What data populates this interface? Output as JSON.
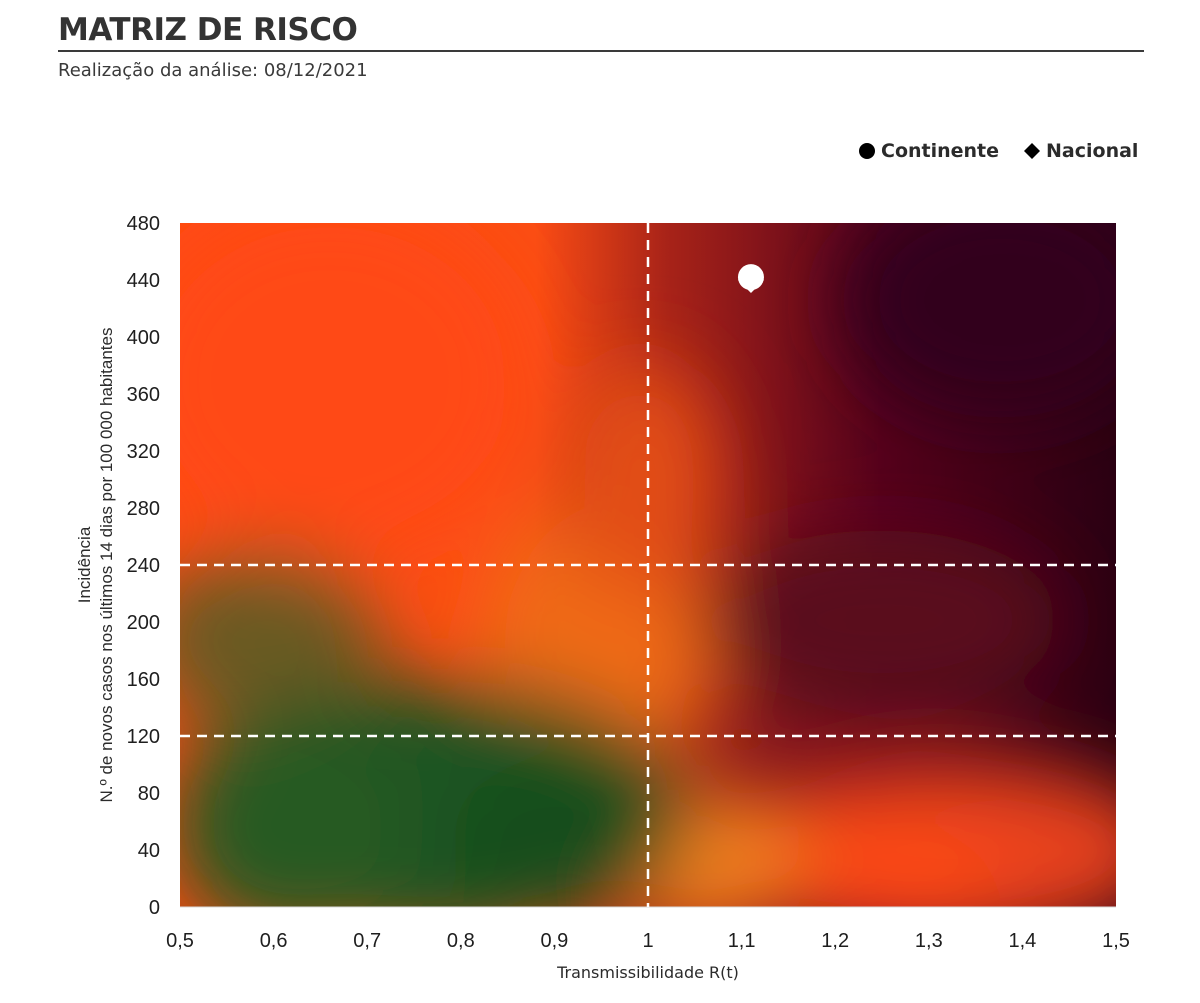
{
  "header": {
    "title": "MATRIZ DE RISCO",
    "subtitle": "Realização da análise: 08/12/2021"
  },
  "legend": {
    "items": [
      {
        "label": "Continente",
        "marker": "circle-icon",
        "color": "#000000"
      },
      {
        "label": "Nacional",
        "marker": "diamond-icon",
        "color": "#000000"
      }
    ]
  },
  "chart_data": {
    "type": "scatter",
    "title": "MATRIZ DE RISCO",
    "xlabel": "Transmissibilidade R(t)",
    "ylabel_lines": [
      "Incidência",
      "N.º de novos casos nos últimos 14 dias por 100 000 habitantes"
    ],
    "xlim": [
      0.5,
      1.5
    ],
    "ylim": [
      0,
      480
    ],
    "x_ticks": [
      "0,5",
      "0,6",
      "0,7",
      "0,8",
      "0,9",
      "1",
      "1,1",
      "1,2",
      "1,3",
      "1,4",
      "1,5"
    ],
    "x_tick_values": [
      0.5,
      0.6,
      0.7,
      0.8,
      0.9,
      1.0,
      1.1,
      1.2,
      1.3,
      1.4,
      1.5
    ],
    "y_ticks": [
      "0",
      "40",
      "80",
      "120",
      "160",
      "200",
      "240",
      "280",
      "320",
      "360",
      "400",
      "440",
      "480"
    ],
    "y_tick_values": [
      0,
      40,
      80,
      120,
      160,
      200,
      240,
      280,
      320,
      360,
      400,
      440,
      480
    ],
    "reference_lines": {
      "x": [
        1.0
      ],
      "y": [
        120,
        240
      ]
    },
    "series": [
      {
        "name": "Continente",
        "marker": "circle",
        "x": [
          1.11
        ],
        "y": [
          442
        ],
        "color": "#ffffff"
      },
      {
        "name": "Nacional",
        "marker": "diamond",
        "x": [
          1.11
        ],
        "y": [
          440
        ],
        "color": "#ffffff"
      }
    ],
    "background": "risk heatmap: green (low R, low incidence) to orange to dark red (high R, high incidence)",
    "colors": {
      "green": "#1b5322",
      "orange": "#ff4a12",
      "dark_red": "#2b0012",
      "reference_line": "#ffffff"
    }
  }
}
